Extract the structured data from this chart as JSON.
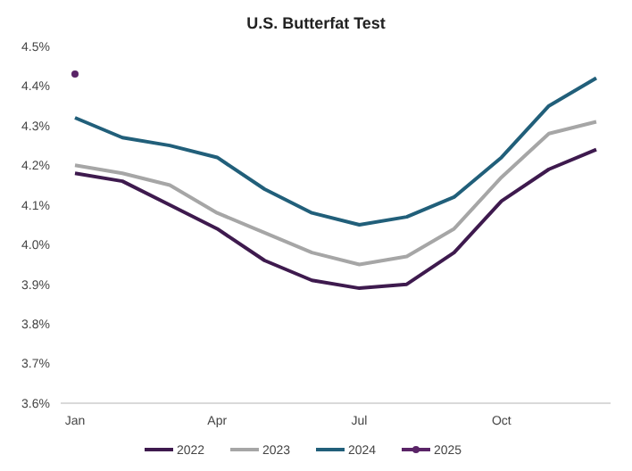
{
  "chart_data": {
    "type": "line",
    "title": "U.S. Butterfat Test",
    "categories": [
      "Jan",
      null,
      null,
      "Apr",
      null,
      null,
      "Jul",
      null,
      null,
      "Oct",
      null,
      null
    ],
    "series": [
      {
        "name": "2022",
        "color": "#3e1a4e",
        "values": [
          4.18,
          4.16,
          4.1,
          4.04,
          3.96,
          3.91,
          3.89,
          3.9,
          3.98,
          4.11,
          4.19,
          4.24
        ]
      },
      {
        "name": "2023",
        "color": "#a6a6a6",
        "values": [
          4.2,
          4.18,
          4.15,
          4.08,
          4.03,
          3.98,
          3.95,
          3.97,
          4.04,
          4.17,
          4.28,
          4.31
        ]
      },
      {
        "name": "2024",
        "color": "#215f7a",
        "values": [
          4.32,
          4.27,
          4.25,
          4.22,
          4.14,
          4.08,
          4.05,
          4.07,
          4.12,
          4.22,
          4.35,
          4.42
        ]
      },
      {
        "name": "2025",
        "color": "#5a2467",
        "marker": "circle",
        "values": [
          4.43,
          null,
          null,
          null,
          null,
          null,
          null,
          null,
          null,
          null,
          null,
          null
        ]
      }
    ],
    "ylim": [
      3.6,
      4.5
    ],
    "yticks": [
      {
        "value": 3.6,
        "label": "3.6%"
      },
      {
        "value": 3.7,
        "label": "3.7%"
      },
      {
        "value": 3.8,
        "label": "3.8%"
      },
      {
        "value": 3.9,
        "label": "3.9%"
      },
      {
        "value": 4.0,
        "label": "4.0%"
      },
      {
        "value": 4.1,
        "label": "4.1%"
      },
      {
        "value": 4.2,
        "label": "4.2%"
      },
      {
        "value": 4.3,
        "label": "4.3%"
      },
      {
        "value": 4.4,
        "label": "4.4%"
      },
      {
        "value": 4.5,
        "label": "4.5%"
      }
    ],
    "grid": false,
    "legend": "bottom",
    "line_style": "solid"
  }
}
